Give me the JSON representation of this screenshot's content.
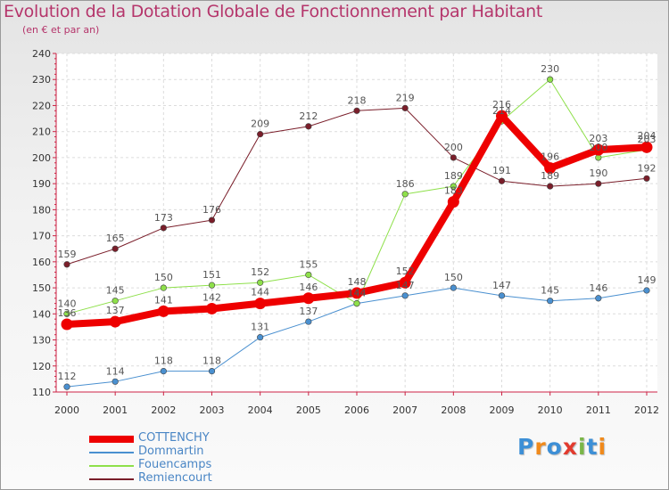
{
  "title": "Evolution de la Dotation Globale de Fonctionnement par Habitant",
  "subtitle": "(en € et par an)",
  "logo": {
    "text": "Proxiti",
    "letters": [
      "P",
      "r",
      "o",
      "x",
      "i",
      "t",
      "i"
    ],
    "colors": [
      "#3d8fd6",
      "#f08a1c",
      "#3d8fd6",
      "#e23b2e",
      "#7ab648",
      "#3d8fd6",
      "#f08a1c"
    ]
  },
  "chart_data": {
    "type": "line",
    "title": "Evolution de la Dotation Globale de Fonctionnement par Habitant",
    "subtitle": "(en € et par an)",
    "xlabel": "",
    "ylabel": "",
    "ylim": [
      110,
      240
    ],
    "yticks": [
      110,
      120,
      130,
      140,
      150,
      160,
      170,
      180,
      190,
      200,
      210,
      220,
      230,
      240
    ],
    "grid": true,
    "x": [
      "2000",
      "2001",
      "2002",
      "2003",
      "2004",
      "2005",
      "2006",
      "2007",
      "2008",
      "2009",
      "2010",
      "2011",
      "2012"
    ],
    "series": [
      {
        "name": "Remiencourt",
        "color": "#7a1e2a",
        "values": [
          159,
          165,
          173,
          176,
          209,
          212,
          218,
          219,
          200,
          191,
          189,
          190,
          192
        ]
      },
      {
        "name": "Dommartin",
        "color": "#4a90d0",
        "values": [
          112,
          114,
          118,
          118,
          131,
          137,
          144,
          147,
          150,
          147,
          145,
          146,
          149
        ]
      },
      {
        "name": "Fouencamps",
        "color": "#8ee04a",
        "values": [
          140,
          145,
          150,
          151,
          152,
          155,
          144,
          186,
          189,
          214,
          230,
          200,
          203
        ]
      },
      {
        "name": "COTTENCHY",
        "color": "#ee0000",
        "values": [
          136,
          137,
          141,
          142,
          144,
          146,
          148,
          152,
          183,
          216,
          196,
          203,
          204
        ]
      }
    ],
    "legend": [
      "COTTENCHY",
      "Dommartin",
      "Fouencamps",
      "Remiencourt"
    ]
  }
}
